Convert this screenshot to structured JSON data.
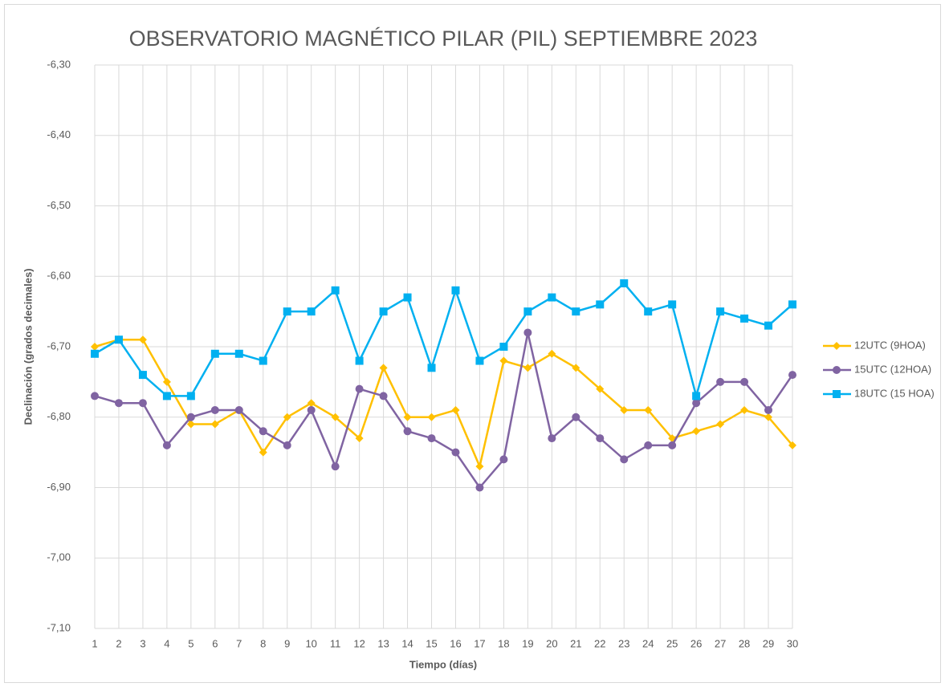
{
  "chart_data": {
    "type": "line",
    "title": "OBSERVATORIO MAGNÉTICO PILAR (PIL) SEPTIEMBRE 2023",
    "x_label": "Tiempo (días)",
    "y_label": "Declinación (grados decimales)",
    "x": [
      1,
      2,
      3,
      4,
      5,
      6,
      7,
      8,
      9,
      10,
      11,
      12,
      13,
      14,
      15,
      16,
      17,
      18,
      19,
      20,
      21,
      22,
      23,
      24,
      25,
      26,
      27,
      28,
      29,
      30
    ],
    "xlim": [
      1,
      30
    ],
    "xticks": [
      1,
      2,
      3,
      4,
      5,
      6,
      7,
      8,
      9,
      10,
      11,
      12,
      13,
      14,
      15,
      16,
      17,
      18,
      19,
      20,
      21,
      22,
      23,
      24,
      25,
      26,
      27,
      28,
      29,
      30
    ],
    "ylim": [
      -7.1,
      -6.3
    ],
    "yticks": [
      {
        "value": -7.1,
        "label": "-7,10"
      },
      {
        "value": -7.0,
        "label": "-7,00"
      },
      {
        "value": -6.9,
        "label": "-6,90"
      },
      {
        "value": -6.8,
        "label": "-6,80"
      },
      {
        "value": -6.7,
        "label": "-6,70"
      },
      {
        "value": -6.6,
        "label": "-6,60"
      },
      {
        "value": -6.5,
        "label": "-6,50"
      },
      {
        "value": -6.4,
        "label": "-6,40"
      },
      {
        "value": -6.3,
        "label": "-6,30"
      }
    ],
    "grid": true,
    "legend": "right",
    "series": [
      {
        "name": "12UTC (9HOA)",
        "color": "#ffc000",
        "marker": "diamond",
        "values": [
          -6.7,
          -6.69,
          -6.69,
          -6.75,
          -6.81,
          -6.81,
          -6.79,
          -6.85,
          -6.8,
          -6.78,
          -6.8,
          -6.83,
          -6.73,
          -6.8,
          -6.8,
          -6.79,
          -6.87,
          -6.72,
          -6.73,
          -6.71,
          -6.73,
          -6.76,
          -6.79,
          -6.79,
          -6.83,
          -6.82,
          -6.81,
          -6.79,
          -6.8,
          -6.84
        ]
      },
      {
        "name": "15UTC (12HOA)",
        "color": "#8064a2",
        "marker": "circle",
        "values": [
          -6.77,
          -6.78,
          -6.78,
          -6.84,
          -6.8,
          -6.79,
          -6.79,
          -6.82,
          -6.84,
          -6.79,
          -6.87,
          -6.76,
          -6.77,
          -6.82,
          -6.83,
          -6.85,
          -6.9,
          -6.86,
          -6.68,
          -6.83,
          -6.8,
          -6.83,
          -6.86,
          -6.84,
          -6.84,
          -6.78,
          -6.75,
          -6.75,
          -6.79,
          -6.74
        ]
      },
      {
        "name": "18UTC (15 HOA)",
        "color": "#00b0f0",
        "marker": "square",
        "values": [
          -6.71,
          -6.69,
          -6.74,
          -6.77,
          -6.77,
          -6.71,
          -6.71,
          -6.72,
          -6.65,
          -6.65,
          -6.62,
          -6.72,
          -6.65,
          -6.63,
          -6.73,
          -6.62,
          -6.72,
          -6.7,
          -6.65,
          -6.63,
          -6.65,
          -6.64,
          -6.61,
          -6.65,
          -6.64,
          -6.77,
          -6.65,
          -6.66,
          -6.67,
          -6.64
        ]
      }
    ]
  }
}
